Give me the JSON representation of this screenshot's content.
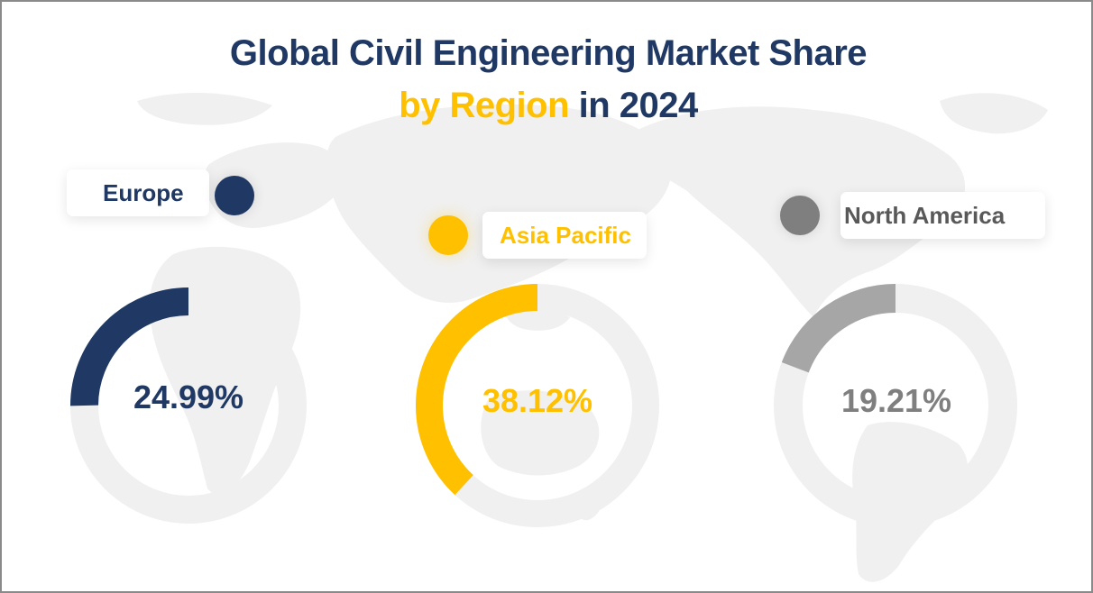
{
  "title": {
    "line1": "Global Civil Engineering Market Share",
    "line2_accent": "by Region",
    "line2_rest": " in 2024"
  },
  "colors": {
    "navy": "#1f3864",
    "yellow": "#ffc000",
    "gray": "#a6a6a6",
    "gray_text": "#7f7f7f",
    "track": "#f0f0f0",
    "map": "#efefef"
  },
  "regions": [
    {
      "name": "Europe",
      "value_label": "24.99%",
      "value": 24.99,
      "color": "#1f3864"
    },
    {
      "name": "Asia Pacific",
      "value_label": "38.12%",
      "value": 38.12,
      "color": "#ffc000"
    },
    {
      "name": "North America",
      "value_label": "19.21%",
      "value": 19.21,
      "color": "#7f7f7f"
    }
  ],
  "chart_data": {
    "type": "pie",
    "subtype": "donut (one per region, each showing share out of 100%)",
    "title": "Global Civil Engineering Market Share by Region in 2024",
    "categories": [
      "Europe",
      "Asia Pacific",
      "North America"
    ],
    "values": [
      24.99,
      38.12,
      19.21
    ],
    "unit": "%",
    "series": [
      {
        "name": "Europe",
        "values": [
          24.99,
          75.01
        ],
        "segments": [
          "share",
          "remainder"
        ],
        "color": "#1f3864"
      },
      {
        "name": "Asia Pacific",
        "values": [
          38.12,
          61.88
        ],
        "segments": [
          "share",
          "remainder"
        ],
        "color": "#ffc000"
      },
      {
        "name": "North America",
        "values": [
          19.21,
          80.79
        ],
        "segments": [
          "share",
          "remainder"
        ],
        "color": "#a6a6a6"
      }
    ],
    "legend": "region labels above each donut",
    "background": "faint world map"
  }
}
